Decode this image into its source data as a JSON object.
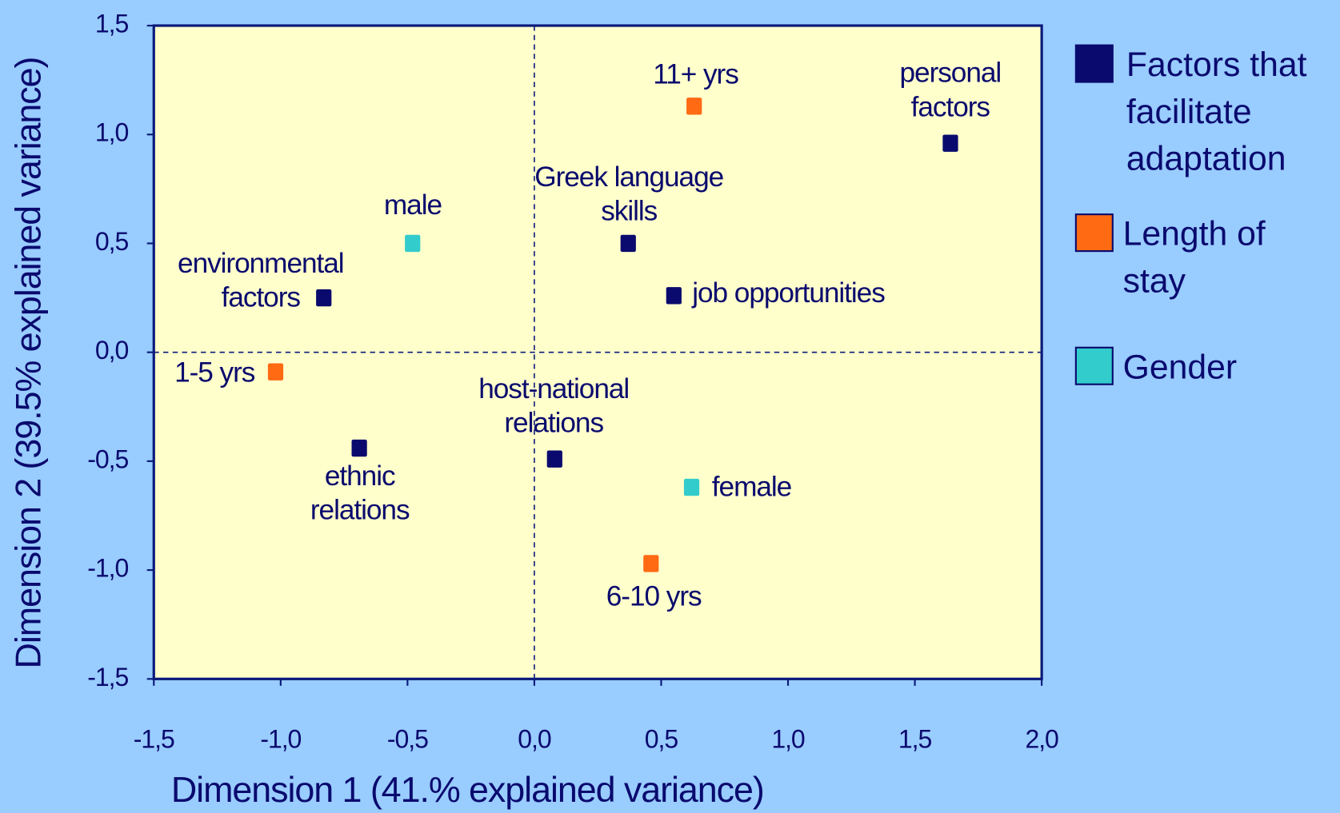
{
  "chart_data": {
    "type": "scatter",
    "xlabel": "Dimension 1 (41.% explained variance)",
    "ylabel": "Dimension 2 (39.5% explained variance)",
    "xlim": [
      -1.5,
      2.0
    ],
    "ylim": [
      -1.5,
      1.5
    ],
    "xticks": [
      {
        "value": -1.5,
        "label": "-1,5"
      },
      {
        "value": -1.0,
        "label": "-1,0"
      },
      {
        "value": -0.5,
        "label": "-0,5"
      },
      {
        "value": 0.0,
        "label": "0,0"
      },
      {
        "value": 0.5,
        "label": "0,5"
      },
      {
        "value": 1.0,
        "label": "1,0"
      },
      {
        "value": 1.5,
        "label": "1,5"
      },
      {
        "value": 2.0,
        "label": "2,0"
      }
    ],
    "yticks": [
      {
        "value": -1.5,
        "label": "-1,5"
      },
      {
        "value": -1.0,
        "label": "-1,0"
      },
      {
        "value": -0.5,
        "label": "-0,5"
      },
      {
        "value": 0.0,
        "label": "0,0"
      },
      {
        "value": 0.5,
        "label": "0,5"
      },
      {
        "value": 1.0,
        "label": "1,0"
      },
      {
        "value": 1.5,
        "label": "1,5"
      }
    ],
    "series": [
      {
        "name": "Factors that facilitate adaptation",
        "color": "#0a0a6e",
        "labels": [
          "personal factors",
          "Greek language skills",
          "job opportunities",
          "environmental factors",
          "ethnic relations",
          "host-national relations"
        ],
        "x": [
          1.64,
          0.37,
          0.55,
          -0.83,
          -0.69,
          0.08
        ],
        "values": [
          0.96,
          0.5,
          0.26,
          0.25,
          -0.44,
          -0.49
        ]
      },
      {
        "name": "Length of stay",
        "color": "#ff6a13",
        "labels": [
          "11+ yrs",
          "1-5 yrs",
          "6-10 yrs"
        ],
        "x": [
          0.63,
          -1.02,
          0.46
        ],
        "values": [
          1.13,
          -0.09,
          -0.97
        ]
      },
      {
        "name": "Gender",
        "color": "#33cccc",
        "labels": [
          "male",
          "female"
        ],
        "x": [
          -0.48,
          0.62
        ],
        "values": [
          0.5,
          -0.62
        ]
      }
    ]
  }
}
